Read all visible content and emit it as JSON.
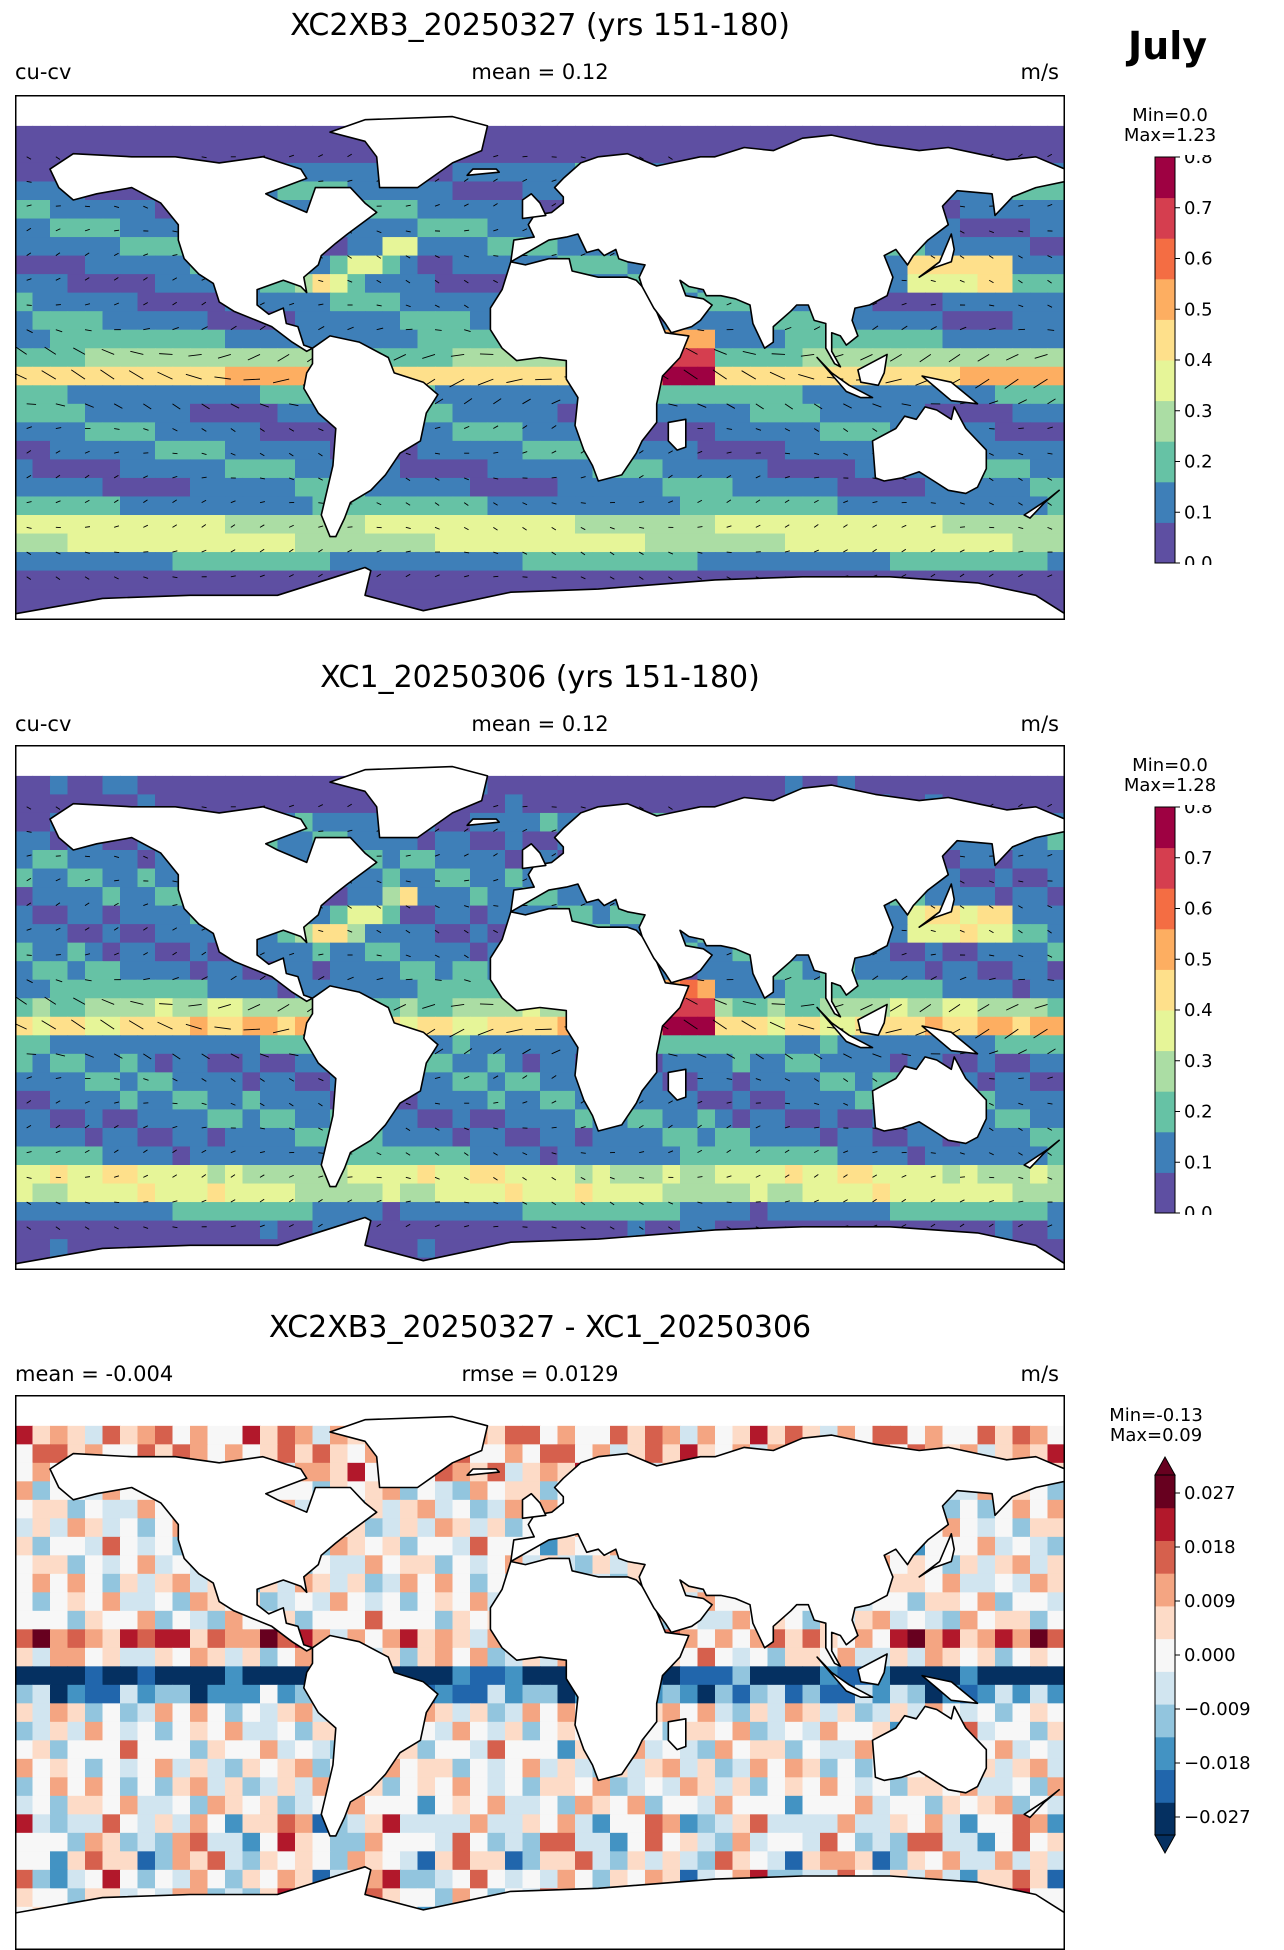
{
  "month": "July",
  "panels": [
    {
      "title": "XC2XB3_20250327 (yrs 151-180)",
      "left_label": "cu-cv",
      "center_label": "mean = 0.12",
      "units": "m/s",
      "min_label": "Min=0.0",
      "max_label": "Max=1.23"
    },
    {
      "title": "XC1_20250306 (yrs 151-180)",
      "left_label": "cu-cv",
      "center_label": "mean = 0.12",
      "units": "m/s",
      "min_label": "Min=0.0",
      "max_label": "Max=1.28"
    },
    {
      "title": "XC2XB3_20250327 - XC1_20250306",
      "left_label": "mean = -0.004",
      "center_label": "rmse = 0.0129",
      "units": "m/s",
      "min_label": "Min=-0.13",
      "max_label": "Max=0.09"
    }
  ],
  "colorbars": {
    "speed": {
      "ticks": [
        "0.0",
        "0.1",
        "0.2",
        "0.3",
        "0.4",
        "0.5",
        "0.6",
        "0.7",
        "0.8"
      ],
      "range": [
        0.0,
        0.8
      ],
      "colors": [
        "#5e4fa2",
        "#3e7fb8",
        "#66c2a5",
        "#abdda4",
        "#e6f598",
        "#fee08b",
        "#fdae61",
        "#f46d43",
        "#d53e4f",
        "#9e0142"
      ]
    },
    "diff": {
      "ticks": [
        "0.027",
        "0.018",
        "0.009",
        "0.000",
        "−0.009",
        "−0.018",
        "−0.027"
      ],
      "range": [
        -0.03,
        0.03
      ],
      "extend": "both",
      "colors": [
        "#053061",
        "#2166ac",
        "#4393c3",
        "#92c5de",
        "#d1e5f0",
        "#f7f7f7",
        "#fddbc7",
        "#f4a582",
        "#d6604d",
        "#b2182b",
        "#67001f"
      ]
    }
  },
  "chart_data": [
    {
      "type": "heatmap",
      "title": "XC2XB3_20250327 (yrs 151-180)",
      "variable": "cu-cv",
      "units": "m/s",
      "mean": 0.12,
      "min": 0.0,
      "max": 1.23,
      "colorbar_range": [
        0.0,
        0.8
      ],
      "overlay": "current vectors"
    },
    {
      "type": "heatmap",
      "title": "XC1_20250306 (yrs 151-180)",
      "variable": "cu-cv",
      "units": "m/s",
      "mean": 0.12,
      "min": 0.0,
      "max": 1.28,
      "colorbar_range": [
        0.0,
        0.8
      ],
      "overlay": "current vectors"
    },
    {
      "type": "heatmap",
      "title": "XC2XB3_20250327 - XC1_20250306",
      "units": "m/s",
      "mean": -0.004,
      "rmse": 0.0129,
      "min": -0.13,
      "max": 0.09,
      "colorbar_range": [
        -0.03,
        0.03
      ]
    }
  ]
}
